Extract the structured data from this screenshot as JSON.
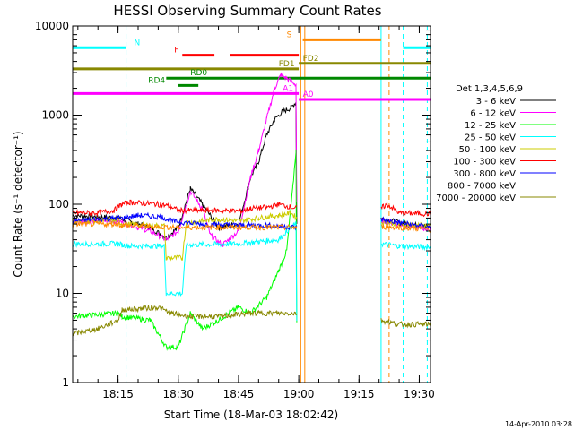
{
  "chart_data": {
    "type": "line",
    "title": "HESSI Observing Summary Count Rates",
    "xlabel": "Start Time (18-Mar-03 18:02:42)",
    "ylabel": "Count Rate (s⁻¹ detector⁻¹)",
    "yscale": "log",
    "ylim": [
      1,
      10000
    ],
    "xlim_min": [
      3.7,
      92.8
    ],
    "x_unit": "minutes after 18:00 UT",
    "x_ticks": [
      {
        "min": 15,
        "label": "18:15"
      },
      {
        "min": 30,
        "label": "18:30"
      },
      {
        "min": 45,
        "label": "18:45"
      },
      {
        "min": 60,
        "label": "19:00"
      },
      {
        "min": 75,
        "label": "19:15"
      },
      {
        "min": 90,
        "label": "19:30"
      }
    ],
    "y_ticks": [
      {
        "v": 1,
        "label": "1"
      },
      {
        "v": 10,
        "label": "10"
      },
      {
        "v": 100,
        "label": "100"
      },
      {
        "v": 1000,
        "label": "1000"
      },
      {
        "v": 10000,
        "label": "10000"
      }
    ],
    "legend_title": "Det 1,3,4,5,6,9",
    "legend_position": "right",
    "series": [
      {
        "name": "3 - 6 keV",
        "color": "#000000",
        "points": [
          [
            3.7,
            75
          ],
          [
            15,
            70
          ],
          [
            20,
            60
          ],
          [
            23,
            55
          ],
          [
            27,
            42
          ],
          [
            30,
            55
          ],
          [
            33,
            150
          ],
          [
            36,
            100
          ],
          [
            40,
            55
          ],
          [
            45,
            60
          ],
          [
            48,
            200
          ],
          [
            50,
            300
          ],
          [
            52,
            600
          ],
          [
            54,
            900
          ],
          [
            56,
            1100
          ],
          [
            58,
            1200
          ],
          [
            59.3,
            1400
          ],
          [
            59.5,
            60
          ]
        ],
        "tail": [
          [
            80.5,
            70
          ],
          [
            85,
            62
          ],
          [
            92.8,
            55
          ]
        ]
      },
      {
        "name": "6 - 12 keV",
        "color": "#ff00ff",
        "points": [
          [
            3.7,
            65
          ],
          [
            15,
            65
          ],
          [
            20,
            55
          ],
          [
            23,
            50
          ],
          [
            27,
            40
          ],
          [
            30,
            50
          ],
          [
            33,
            140
          ],
          [
            36,
            90
          ],
          [
            38,
            45
          ],
          [
            41,
            35
          ],
          [
            45,
            50
          ],
          [
            48,
            200
          ],
          [
            50,
            400
          ],
          [
            52,
            900
          ],
          [
            54,
            2000
          ],
          [
            55.5,
            2800
          ],
          [
            57,
            2600
          ],
          [
            59.3,
            2200
          ],
          [
            59.5,
            100
          ]
        ],
        "tail": [
          [
            80.5,
            65
          ],
          [
            85,
            60
          ],
          [
            92.8,
            52
          ]
        ]
      },
      {
        "name": "12 - 25 keV",
        "color": "#00ff00",
        "points": [
          [
            3.7,
            5.5
          ],
          [
            15,
            6
          ],
          [
            16,
            5.5
          ],
          [
            23,
            5
          ],
          [
            27,
            2.5
          ],
          [
            30,
            2.5
          ],
          [
            33,
            6
          ],
          [
            36,
            4
          ],
          [
            40,
            5
          ],
          [
            45,
            7
          ],
          [
            48,
            6
          ],
          [
            52,
            9
          ],
          [
            55,
            18
          ],
          [
            57,
            30
          ],
          [
            58.5,
            150
          ],
          [
            59.3,
            400
          ],
          [
            59.5,
            5
          ]
        ],
        "tail": []
      },
      {
        "name": "25 - 50 keV",
        "color": "#00ffff",
        "points": [
          [
            3.7,
            36
          ],
          [
            15,
            36
          ],
          [
            16,
            35
          ],
          [
            18,
            34
          ],
          [
            26.5,
            34
          ],
          [
            27,
            10
          ],
          [
            31,
            10
          ],
          [
            32,
            35
          ],
          [
            45,
            36
          ],
          [
            50,
            38
          ],
          [
            55,
            40
          ],
          [
            57,
            50
          ],
          [
            59.3,
            60
          ],
          [
            59.5,
            5
          ]
        ],
        "tail": [
          [
            80.5,
            36
          ],
          [
            85,
            34
          ],
          [
            92.8,
            33
          ]
        ]
      },
      {
        "name": "50 - 100 keV",
        "color": "#cccc00",
        "points": [
          [
            3.7,
            65
          ],
          [
            15,
            65
          ],
          [
            16,
            60
          ],
          [
            26.5,
            57
          ],
          [
            27,
            25
          ],
          [
            31,
            25
          ],
          [
            32,
            62
          ],
          [
            40,
            68
          ],
          [
            45,
            65
          ],
          [
            50,
            70
          ],
          [
            55,
            75
          ],
          [
            58,
            80
          ],
          [
            59.5,
            70
          ]
        ],
        "tail": [
          [
            80.5,
            63
          ],
          [
            85,
            60
          ],
          [
            92.8,
            57
          ]
        ]
      },
      {
        "name": "100 - 300 keV",
        "color": "#ff0000",
        "points": [
          [
            3.7,
            80
          ],
          [
            10,
            80
          ],
          [
            14,
            85
          ],
          [
            16,
            100
          ],
          [
            18,
            105
          ],
          [
            25,
            100
          ],
          [
            28,
            95
          ],
          [
            30,
            85
          ],
          [
            40,
            85
          ],
          [
            46,
            84
          ],
          [
            48,
            90
          ],
          [
            52,
            92
          ],
          [
            55,
            100
          ],
          [
            59.5,
            90
          ]
        ],
        "tail": [
          [
            80.5,
            90
          ],
          [
            82,
            100
          ],
          [
            85,
            80
          ],
          [
            92.8,
            78
          ]
        ]
      },
      {
        "name": "300 - 800 keV",
        "color": "#0000ff",
        "points": [
          [
            3.7,
            65
          ],
          [
            15,
            70
          ],
          [
            16,
            70
          ],
          [
            20,
            75
          ],
          [
            26,
            72
          ],
          [
            28,
            65
          ],
          [
            35,
            60
          ],
          [
            45,
            58
          ],
          [
            52,
            58
          ],
          [
            59.5,
            55
          ]
        ],
        "tail": [
          [
            80.5,
            68
          ],
          [
            85,
            62
          ],
          [
            92.8,
            55
          ]
        ]
      },
      {
        "name": "800 - 7000 keV",
        "color": "#ff8800",
        "points": [
          [
            3.7,
            60
          ],
          [
            15,
            60
          ],
          [
            16,
            58
          ],
          [
            25,
            56
          ],
          [
            30,
            55
          ],
          [
            40,
            55
          ],
          [
            50,
            55
          ],
          [
            59.5,
            55
          ]
        ],
        "tail": [
          [
            80.5,
            56
          ],
          [
            85,
            55
          ],
          [
            92.8,
            52
          ]
        ]
      },
      {
        "name": "7000 - 20000 keV",
        "color": "#888800",
        "points": [
          [
            3.7,
            3.5
          ],
          [
            10,
            4
          ],
          [
            15,
            5
          ],
          [
            16,
            6.5
          ],
          [
            25,
            7
          ],
          [
            28,
            6
          ],
          [
            33,
            5.5
          ],
          [
            40,
            5.5
          ],
          [
            48,
            6
          ],
          [
            55,
            6
          ],
          [
            59.5,
            6
          ]
        ],
        "tail": [
          [
            80.5,
            5
          ],
          [
            85,
            4.5
          ],
          [
            92.8,
            4.5
          ]
        ]
      }
    ],
    "flag_bars": [
      {
        "label": "N",
        "color": "#00ffff",
        "y": 5700,
        "segments": [
          [
            3.7,
            17
          ],
          [
            86,
            92.8
          ]
        ],
        "label_min": 19.0
      },
      {
        "label": "F",
        "color": "#ff0000",
        "y": 4700,
        "segments": [
          [
            31,
            39
          ],
          [
            43,
            60
          ]
        ],
        "label_min": 29.0
      },
      {
        "label": "FD1",
        "color": "#888800",
        "y": 3300,
        "segments": [
          [
            3.7,
            60
          ]
        ],
        "label_min": 55.0
      },
      {
        "label": "FD2",
        "color": "#888800",
        "y": 3800,
        "segments": [
          [
            60,
            92.8
          ]
        ],
        "label_min": 61.0
      },
      {
        "label": "S",
        "color": "#ff8800",
        "y": 7000,
        "segments": [
          [
            61,
            80.5
          ]
        ],
        "label_min": 57.0
      },
      {
        "label": "RD0",
        "color": "#008800",
        "y": 2600,
        "segments": [
          [
            27,
            92.8
          ]
        ],
        "label_min": 33.0
      },
      {
        "label": "RD4",
        "color": "#008800",
        "y": 2150,
        "segments": [
          [
            30,
            35
          ]
        ],
        "label_min": 22.5
      },
      {
        "label": "A1",
        "color": "#ff00ff",
        "y": 1750,
        "segments": [
          [
            3.7,
            60
          ]
        ],
        "label_min": 56.0
      },
      {
        "label": "A0",
        "color": "#ff00ff",
        "y": 1500,
        "segments": [
          [
            60,
            92.8
          ]
        ],
        "label_min": 61.0
      }
    ],
    "vertical_lines": [
      {
        "min": 17.0,
        "color": "#00ffff",
        "style": "dashed"
      },
      {
        "min": 86.0,
        "color": "#00ffff",
        "style": "dashed"
      },
      {
        "min": 92.0,
        "color": "#00ffff",
        "style": "dashed"
      },
      {
        "min": 80.5,
        "color": "#00ffff",
        "style": "solid"
      },
      {
        "min": 60.5,
        "color": "#ff8800",
        "style": "solid"
      },
      {
        "min": 61.5,
        "color": "#ff8800",
        "style": "solid"
      },
      {
        "min": 82.5,
        "color": "#ff8800",
        "style": "dashed"
      },
      {
        "min": 3.7,
        "color": "#00ffff",
        "style": "solid"
      }
    ],
    "timestamp": "14-Apr-2010 03:28"
  }
}
